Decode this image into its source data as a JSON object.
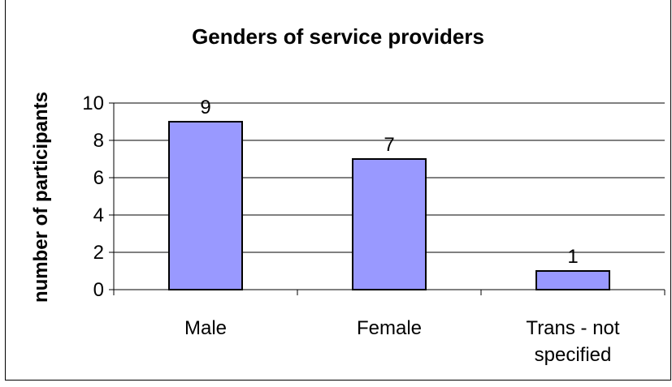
{
  "chart_data": {
    "type": "bar",
    "title": "Genders of service providers",
    "ylabel": "number of participants",
    "xlabel": "",
    "categories": [
      "Male",
      "Female",
      "Trans - not specified"
    ],
    "category_lines": [
      [
        "Male"
      ],
      [
        "Female"
      ],
      [
        "Trans - not",
        "specified"
      ]
    ],
    "values": [
      9,
      7,
      1
    ],
    "data_labels": [
      "9",
      "7",
      "1"
    ],
    "ylim": [
      0,
      10
    ],
    "yticks": [
      0,
      2,
      4,
      6,
      8,
      10
    ],
    "ytick_labels": [
      "0",
      "2",
      "4",
      "6",
      "8",
      "10"
    ],
    "grid": true,
    "legend": "none",
    "bar_color": "#9999ff",
    "bar_edge_color": "#000000"
  }
}
